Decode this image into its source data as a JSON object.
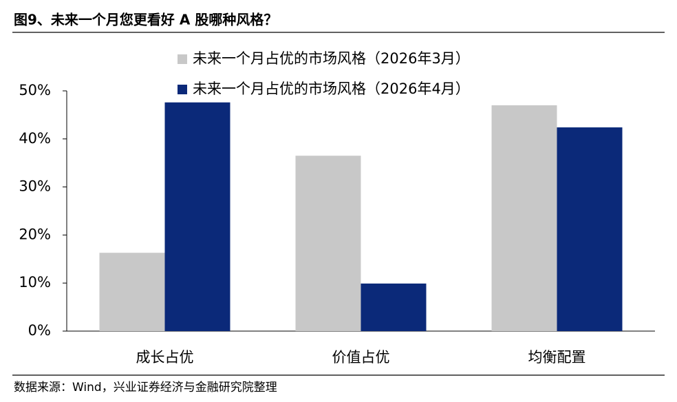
{
  "chart_data": {
    "type": "bar",
    "title": "图9、未来一个月您更看好 A 股哪种风格？",
    "source": "数据来源：Wind，兴业证券经济与金融研究院整理",
    "categories": [
      "成长占优",
      "价值占优",
      "均衡配置"
    ],
    "series": [
      {
        "name": "未来一个月占优的市场风格（2026年3月）",
        "color": "#c8c8c8",
        "values": [
          16.3,
          36.5,
          47.0
        ]
      },
      {
        "name": "未来一个月占优的市场风格（2026年4月）",
        "color": "#0b2979",
        "values": [
          47.6,
          9.9,
          42.4
        ]
      }
    ],
    "ylim": [
      0,
      50
    ],
    "yticks": [
      {
        "value": 0,
        "label": "0%"
      },
      {
        "value": 10,
        "label": "10%"
      },
      {
        "value": 20,
        "label": "20%"
      },
      {
        "value": 30,
        "label": "30%"
      },
      {
        "value": 40,
        "label": "40%"
      },
      {
        "value": 50,
        "label": "50%"
      }
    ],
    "grid": false
  }
}
